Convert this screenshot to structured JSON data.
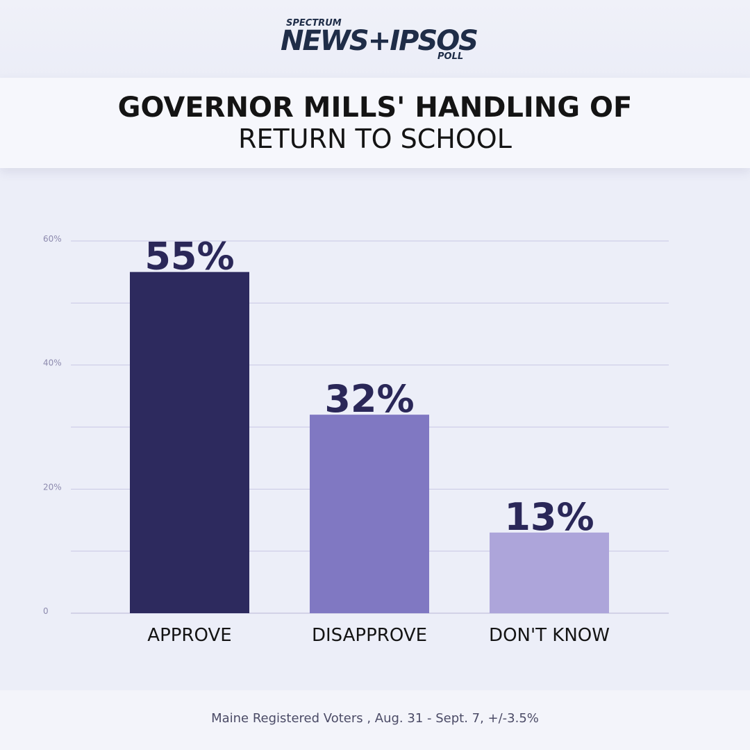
{
  "brand": {
    "top": "SPECTRUM",
    "main": "NEWS+IPSOS",
    "sub": "POLL"
  },
  "title": {
    "line1": "GOVERNOR MILLS' HANDLING OF",
    "line2": "RETURN TO SCHOOL"
  },
  "chart_data": {
    "type": "bar",
    "title": "GOVERNOR MILLS' HANDLING OF RETURN TO SCHOOL",
    "categories": [
      "APPROVE",
      "DISAPPROVE",
      "DON'T KNOW"
    ],
    "values": [
      55,
      32,
      13
    ],
    "value_labels": [
      "55%",
      "32%",
      "13%"
    ],
    "bar_colors": [
      "#2d2a5e",
      "#8078c2",
      "#ada5da"
    ],
    "ylim": [
      0,
      60
    ],
    "yticks": [
      0,
      20,
      40,
      60
    ],
    "ytick_labels": [
      "0",
      "20%",
      "40%",
      "60%"
    ],
    "grid": true,
    "legend": "none"
  },
  "footer": {
    "note": "Maine Registered Voters , Aug. 31 - Sept. 7, +/-3.5%"
  }
}
